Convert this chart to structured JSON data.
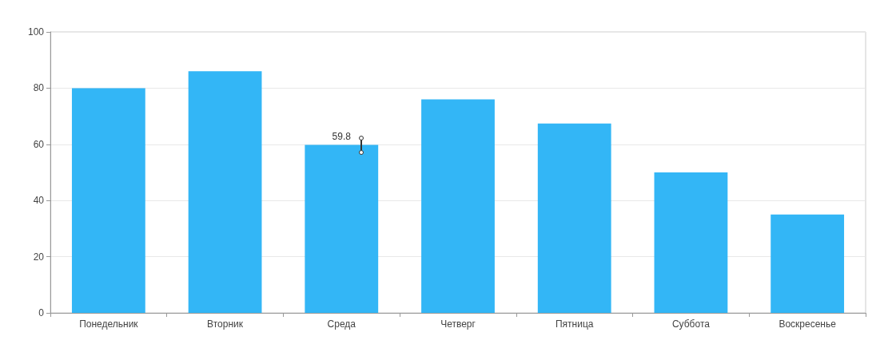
{
  "chart_data": {
    "type": "bar",
    "categories": [
      "Понедельник",
      "Вторник",
      "Среда",
      "Четверг",
      "Пятница",
      "Суббота",
      "Воскресенье"
    ],
    "values": [
      80,
      86,
      59.8,
      76,
      67.4,
      50,
      35
    ],
    "value_labels": [
      null,
      null,
      "59.8",
      null,
      null,
      null,
      null
    ],
    "color": "#33b6f6",
    "ylim": [
      0,
      100
    ],
    "yticks": [
      0,
      20,
      40,
      60,
      80,
      100
    ],
    "grid": "y"
  }
}
